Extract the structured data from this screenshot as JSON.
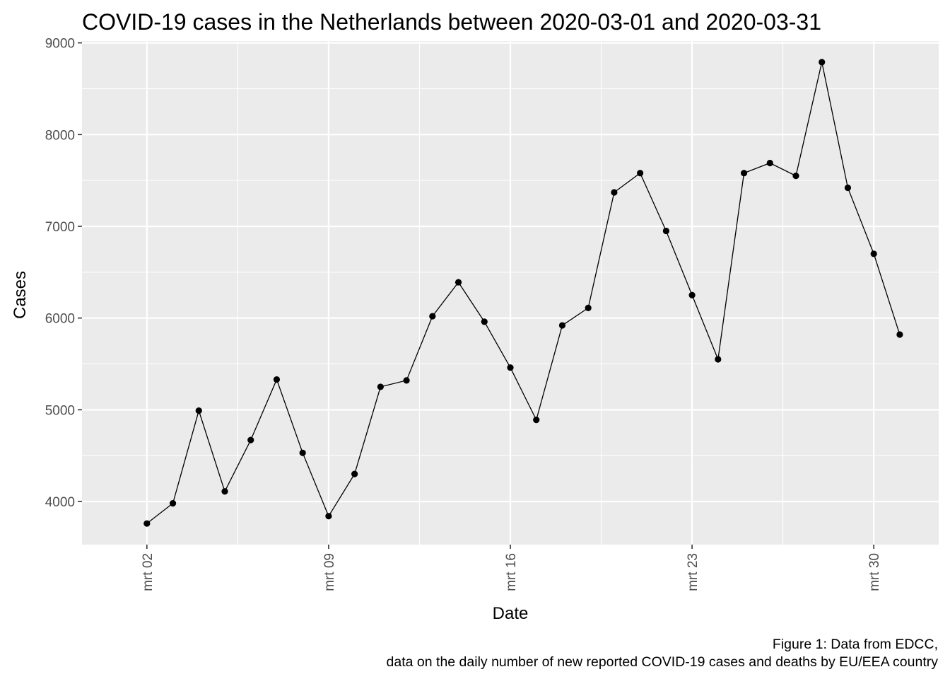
{
  "chart_data": {
    "type": "line",
    "title": "COVID-19 cases in the Netherlands between 2020-03-01 and 2020-03-31",
    "xlabel": "Date",
    "ylabel": "Cases",
    "caption_lines": [
      "Figure 1: Data from EDCC,",
      "data on the daily number of new reported COVID-19 cases and deaths by EU/EEA country"
    ],
    "x": [
      "2020-03-02",
      "2020-03-03",
      "2020-03-04",
      "2020-03-05",
      "2020-03-06",
      "2020-03-07",
      "2020-03-08",
      "2020-03-09",
      "2020-03-10",
      "2020-03-11",
      "2020-03-12",
      "2020-03-13",
      "2020-03-14",
      "2020-03-15",
      "2020-03-16",
      "2020-03-17",
      "2020-03-18",
      "2020-03-19",
      "2020-03-20",
      "2020-03-21",
      "2020-03-22",
      "2020-03-23",
      "2020-03-24",
      "2020-03-25",
      "2020-03-26",
      "2020-03-27",
      "2020-03-28",
      "2020-03-29",
      "2020-03-30",
      "2020-03-31"
    ],
    "series": [
      {
        "values": [
          3760,
          3980,
          4990,
          4110,
          4670,
          5330,
          4530,
          3840,
          4300,
          5250,
          5320,
          6020,
          6390,
          5960,
          5460,
          4890,
          5920,
          6110,
          7370,
          7580,
          6950,
          6250,
          5550,
          7580,
          7690,
          7550,
          8790,
          7420,
          6700,
          5820
        ]
      }
    ],
    "x_range": [
      "2020-03-01",
      "2020-03-31"
    ],
    "x_ticks": [
      "2020-03-02",
      "2020-03-09",
      "2020-03-16",
      "2020-03-23",
      "2020-03-30"
    ],
    "x_tick_labels": [
      "mrt 02",
      "mrt 09",
      "mrt 16",
      "mrt 23",
      "mrt 30"
    ],
    "ylim": [
      3530,
      9020
    ],
    "y_ticks": [
      4000,
      5000,
      6000,
      7000,
      8000,
      9000
    ],
    "y_tick_labels": [
      "4000",
      "5000",
      "6000",
      "7000",
      "8000",
      "9000"
    ],
    "grid": true,
    "legend": "none",
    "colors": {
      "panel": "#ebebeb",
      "grid": "#ffffff",
      "line": "#000000",
      "point": "#000000"
    }
  }
}
